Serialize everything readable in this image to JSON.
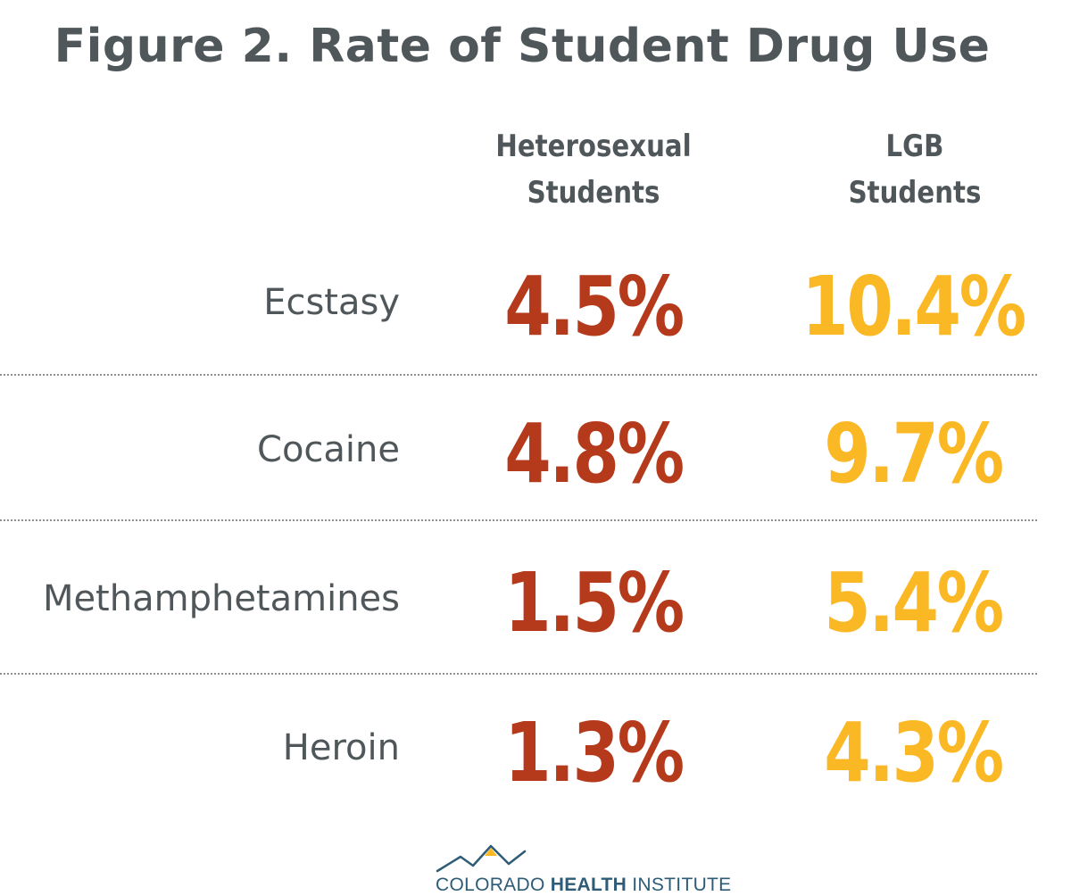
{
  "chart_data": {
    "type": "table",
    "title": "Figure 2. Rate of Student Drug Use",
    "columns": [
      {
        "line1": "Heterosexual",
        "line2": "Students",
        "color": "#b5391b"
      },
      {
        "line1": "LGB",
        "line2": "Students",
        "color": "#fbb825"
      }
    ],
    "rows": [
      {
        "label": "Ecstasy",
        "values": [
          "4.5%",
          "10.4%"
        ]
      },
      {
        "label": "Cocaine",
        "values": [
          "4.8%",
          "9.7%"
        ]
      },
      {
        "label": "Methamphetamines",
        "values": [
          "1.5%",
          "5.4%"
        ]
      },
      {
        "label": "Heroin",
        "values": [
          "1.3%",
          "4.3%"
        ]
      }
    ],
    "grid": "dotted row dividers"
  },
  "logo": {
    "text_regular_1": "COLORADO ",
    "text_bold": "HEALTH",
    "text_regular_2": " INSTITUTE",
    "colors": {
      "text": "#2e5c77",
      "peak": "#fbb825",
      "line": "#2e5c77"
    }
  }
}
